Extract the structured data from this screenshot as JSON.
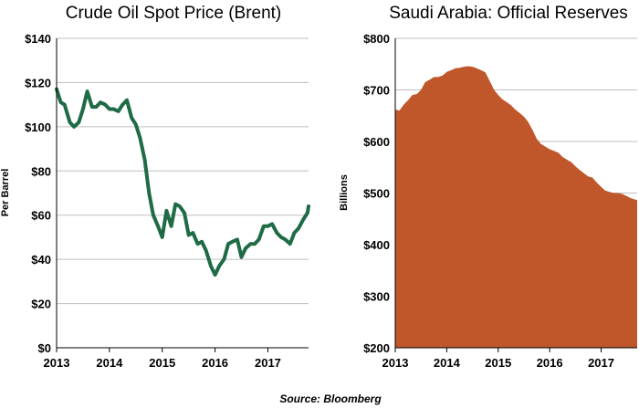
{
  "source": "Source: Bloomberg",
  "chart_data": [
    {
      "type": "line",
      "title": "Crude Oil Spot Price (Brent)",
      "ylabel": "Per Barrel",
      "xlabel": "",
      "ylim": [
        0,
        140
      ],
      "yticks": [
        0,
        20,
        40,
        60,
        80,
        100,
        120,
        140
      ],
      "ytick_labels": [
        "$0",
        "$20",
        "$40",
        "$60",
        "$80",
        "$100",
        "$120",
        "$140"
      ],
      "xlim": [
        2013,
        2017.77
      ],
      "xticks": [
        2013,
        2014,
        2015,
        2016,
        2017
      ],
      "xtick_labels": [
        "2013",
        "2014",
        "2015",
        "2016",
        "2017"
      ],
      "grid": "horizontal",
      "color": "#1e6b45",
      "series": [
        {
          "x": [
            2013.0,
            2013.08,
            2013.15,
            2013.25,
            2013.33,
            2013.42,
            2013.5,
            2013.58,
            2013.67,
            2013.75,
            2013.83,
            2013.92,
            2014.0,
            2014.08,
            2014.17,
            2014.25,
            2014.33,
            2014.42,
            2014.5,
            2014.58,
            2014.67,
            2014.75,
            2014.83,
            2014.92,
            2015.0,
            2015.08,
            2015.17,
            2015.25,
            2015.33,
            2015.42,
            2015.5,
            2015.58,
            2015.67,
            2015.75,
            2015.83,
            2015.92,
            2016.0,
            2016.08,
            2016.17,
            2016.25,
            2016.33,
            2016.42,
            2016.5,
            2016.58,
            2016.67,
            2016.75,
            2016.83,
            2016.92,
            2017.0,
            2017.08,
            2017.17,
            2017.25,
            2017.33,
            2017.42,
            2017.5,
            2017.58,
            2017.67,
            2017.75,
            2017.77
          ],
          "y": [
            117,
            111,
            110,
            102,
            100,
            102,
            108,
            116,
            109,
            109,
            111,
            110,
            108,
            108,
            107,
            110,
            112,
            104,
            101,
            95,
            85,
            70,
            60,
            55,
            50,
            62,
            55,
            65,
            64,
            61,
            51,
            52,
            47,
            48,
            44,
            37,
            33,
            37,
            40,
            47,
            48,
            49,
            41,
            45,
            47,
            47,
            49,
            55,
            55,
            56,
            52,
            50,
            49,
            47,
            52,
            54,
            58,
            61,
            64
          ]
        }
      ]
    },
    {
      "type": "area",
      "title": "Saudi Arabia: Official Reserves",
      "ylabel": "Billions",
      "xlabel": "",
      "ylim": [
        200,
        800
      ],
      "yticks": [
        200,
        300,
        400,
        500,
        600,
        700,
        800
      ],
      "ytick_labels": [
        "$200",
        "$300",
        "$400",
        "$500",
        "$600",
        "$700",
        "$800"
      ],
      "xlim": [
        2013,
        2017.7
      ],
      "xticks": [
        2013,
        2014,
        2015,
        2016,
        2017
      ],
      "xtick_labels": [
        "2013",
        "2014",
        "2015",
        "2016",
        "2017"
      ],
      "grid": "horizontal",
      "color": "#c0572a",
      "series": [
        {
          "x": [
            2013.0,
            2013.08,
            2013.17,
            2013.25,
            2013.33,
            2013.42,
            2013.5,
            2013.58,
            2013.67,
            2013.75,
            2013.83,
            2013.92,
            2014.0,
            2014.08,
            2014.17,
            2014.25,
            2014.33,
            2014.42,
            2014.5,
            2014.58,
            2014.67,
            2014.75,
            2014.83,
            2014.92,
            2015.0,
            2015.08,
            2015.17,
            2015.25,
            2015.33,
            2015.42,
            2015.5,
            2015.58,
            2015.67,
            2015.75,
            2015.83,
            2015.92,
            2016.0,
            2016.08,
            2016.17,
            2016.25,
            2016.33,
            2016.42,
            2016.5,
            2016.58,
            2016.67,
            2016.75,
            2016.83,
            2016.92,
            2017.0,
            2017.08,
            2017.17,
            2017.25,
            2017.33,
            2017.42,
            2017.5,
            2017.58,
            2017.67,
            2017.7
          ],
          "y": [
            662,
            660,
            672,
            680,
            690,
            692,
            700,
            715,
            720,
            725,
            725,
            728,
            735,
            738,
            742,
            743,
            745,
            746,
            745,
            742,
            738,
            734,
            718,
            700,
            690,
            682,
            676,
            670,
            662,
            655,
            648,
            638,
            622,
            605,
            595,
            590,
            585,
            582,
            578,
            570,
            565,
            560,
            552,
            545,
            538,
            532,
            530,
            520,
            512,
            505,
            502,
            500,
            500,
            498,
            494,
            490,
            487,
            486
          ]
        }
      ]
    }
  ]
}
